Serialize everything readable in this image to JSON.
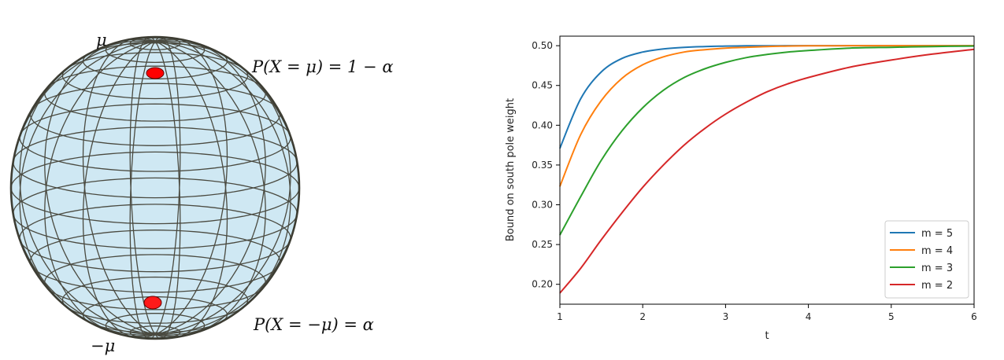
{
  "sphere": {
    "top_label": "μ",
    "bottom_label": "−μ",
    "top_prob": "P(X = μ) = 1 − α",
    "bottom_prob": "P(X = −μ) = α",
    "fill_color": "#cfe8f3",
    "mesh_color": "#4a4a40",
    "pole_color": "#ff0000"
  },
  "chart_data": {
    "type": "line",
    "title": "",
    "xlabel": "t",
    "ylabel": "Bound on south pole weight",
    "xlim": [
      1,
      6
    ],
    "ylim": [
      0.175,
      0.512
    ],
    "xticks": [
      1,
      2,
      3,
      4,
      5,
      6
    ],
    "xtick_labels": [
      "1",
      "2",
      "3",
      "4",
      "5",
      "6"
    ],
    "yticks": [
      0.2,
      0.25,
      0.3,
      0.35,
      0.4,
      0.45,
      0.5
    ],
    "ytick_labels": [
      "0.20",
      "0.25",
      "0.30",
      "0.35",
      "0.40",
      "0.45",
      "0.50"
    ],
    "grid": false,
    "legend_position": "lower-right",
    "x": [
      1,
      1.25,
      1.5,
      1.75,
      2,
      2.25,
      2.5,
      2.75,
      3,
      3.25,
      3.5,
      3.75,
      4,
      4.5,
      5,
      5.5,
      6
    ],
    "series": [
      {
        "name": "m = 5",
        "color": "#1f77b4",
        "values": [
          0.371,
          0.433,
          0.467,
          0.484,
          0.492,
          0.496,
          0.498,
          0.499,
          0.4995,
          0.4998,
          0.4999,
          0.5,
          0.5,
          0.5,
          0.5,
          0.5,
          0.5
        ]
      },
      {
        "name": "m = 4",
        "color": "#ff7f0e",
        "values": [
          0.323,
          0.388,
          0.431,
          0.459,
          0.476,
          0.486,
          0.492,
          0.495,
          0.497,
          0.498,
          0.499,
          0.4995,
          0.4998,
          0.5,
          0.5,
          0.5,
          0.5
        ]
      },
      {
        "name": "m = 3",
        "color": "#2ca02c",
        "values": [
          0.262,
          0.31,
          0.356,
          0.393,
          0.422,
          0.444,
          0.46,
          0.471,
          0.479,
          0.485,
          0.489,
          0.492,
          0.494,
          0.497,
          0.498,
          0.499,
          0.4995
        ]
      },
      {
        "name": "m = 2",
        "color": "#d62728",
        "values": [
          0.189,
          0.22,
          0.256,
          0.29,
          0.322,
          0.35,
          0.375,
          0.396,
          0.414,
          0.429,
          0.442,
          0.452,
          0.46,
          0.473,
          0.482,
          0.4895,
          0.4955
        ]
      }
    ]
  }
}
